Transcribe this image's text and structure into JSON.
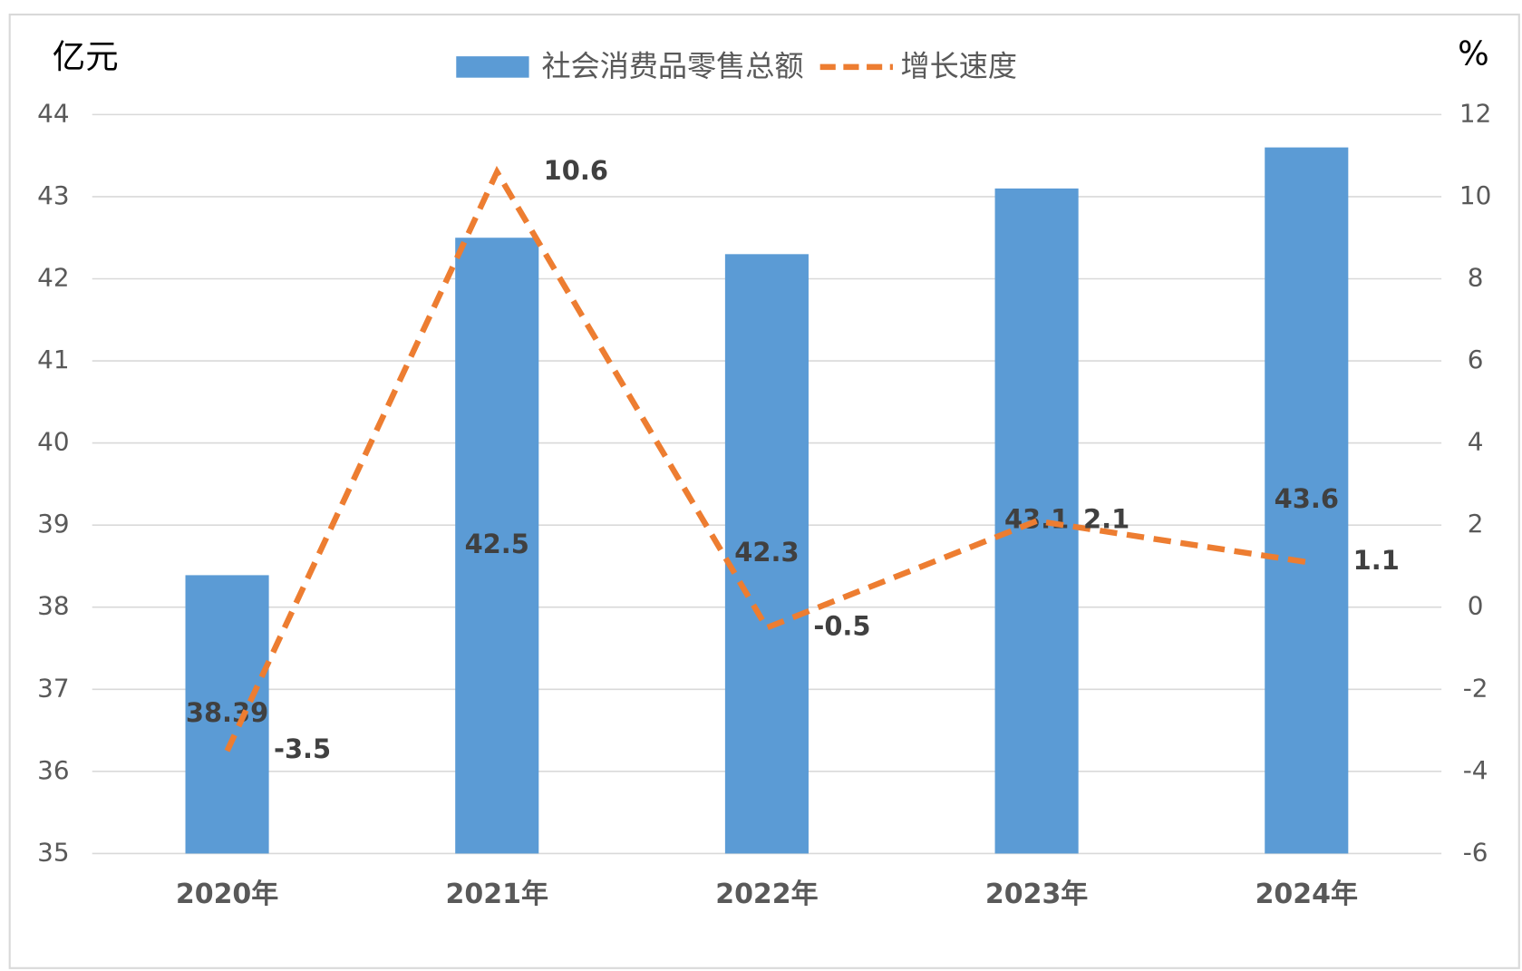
{
  "chart_data": {
    "type": "combo",
    "y_label": "亿元",
    "y2_label": "%",
    "categories": [
      "2020年",
      "2021年",
      "2022年",
      "2023年",
      "2024年"
    ],
    "series": [
      {
        "name": "社会消费品零售总额",
        "type": "bar",
        "color": "#5b9bd5",
        "values": [
          38.39,
          42.5,
          42.3,
          43.1,
          43.6
        ]
      },
      {
        "name": "增长速度",
        "type": "line",
        "axis": "y2",
        "color": "#ed7d31",
        "values": [
          -3.5,
          10.6,
          -0.5,
          2.1,
          1.1
        ]
      }
    ],
    "ylim": [
      35,
      44
    ],
    "yticks": [
      35,
      36,
      37,
      38,
      39,
      40,
      41,
      42,
      43,
      44
    ],
    "y2lim": [
      -6,
      12
    ],
    "y2ticks": [
      -6,
      -4,
      -2,
      0,
      2,
      4,
      6,
      8,
      10,
      12
    ],
    "grid": true,
    "legend": "top"
  }
}
